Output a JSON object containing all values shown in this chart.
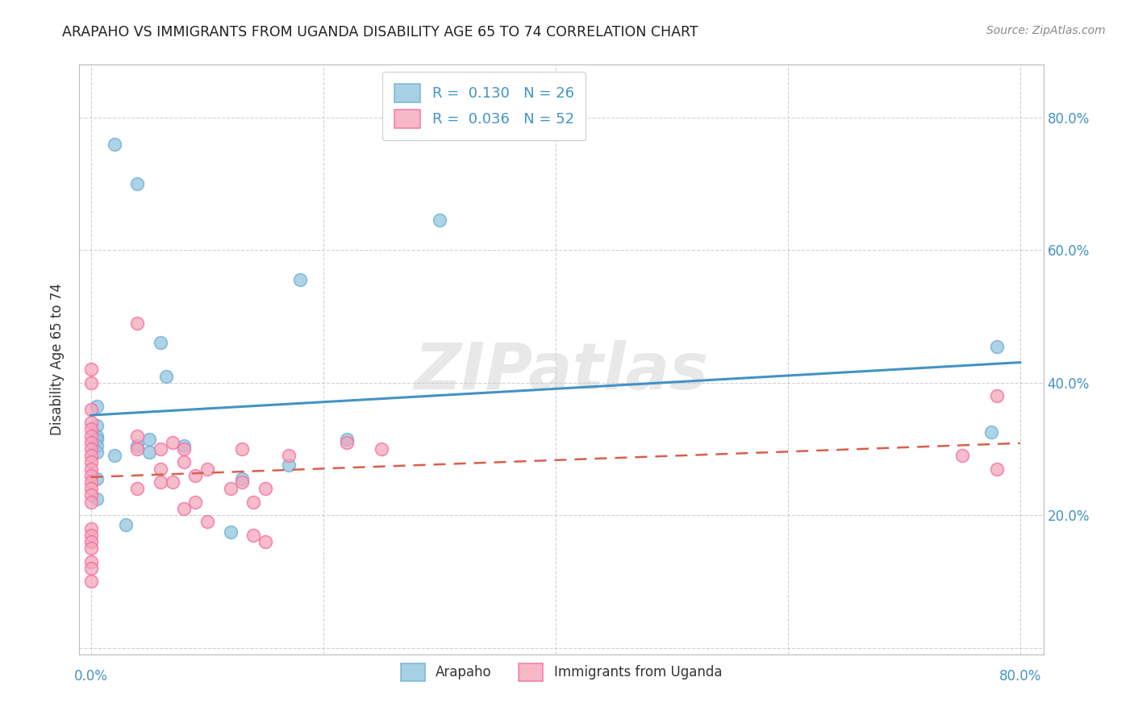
{
  "title": "ARAPAHO VS IMMIGRANTS FROM UGANDA DISABILITY AGE 65 TO 74 CORRELATION CHART",
  "source": "Source: ZipAtlas.com",
  "ylabel": "Disability Age 65 to 74",
  "xlim": [
    -0.01,
    0.82
  ],
  "ylim": [
    -0.01,
    0.88
  ],
  "x_ticks": [
    0.0,
    0.2,
    0.4,
    0.6,
    0.8
  ],
  "y_ticks": [
    0.0,
    0.2,
    0.4,
    0.6,
    0.8
  ],
  "x_tick_labels_left": [
    "0.0%"
  ],
  "x_tick_labels_right": [
    "80.0%"
  ],
  "y_tick_labels_right": [
    "20.0%",
    "40.0%",
    "60.0%",
    "80.0%"
  ],
  "arapaho_color": "#92c5de",
  "uganda_color": "#f4a7b9",
  "arapaho_edge_color": "#6baed6",
  "uganda_edge_color": "#f768a1",
  "arapaho_line_color": "#4393c3",
  "uganda_line_color": "#d6604d",
  "arapaho_R": 0.13,
  "arapaho_N": 26,
  "uganda_R": 0.036,
  "uganda_N": 52,
  "legend_labels": [
    "Arapaho",
    "Immigrants from Uganda"
  ],
  "watermark": "ZIPatlas",
  "tick_color": "#4393c3",
  "arapaho_x": [
    0.02,
    0.04,
    0.005,
    0.005,
    0.005,
    0.005,
    0.005,
    0.005,
    0.005,
    0.06,
    0.065,
    0.005,
    0.3,
    0.18,
    0.05,
    0.04,
    0.03,
    0.78,
    0.775,
    0.22,
    0.12,
    0.05,
    0.08,
    0.02,
    0.13,
    0.17
  ],
  "arapaho_y": [
    0.76,
    0.7,
    0.365,
    0.335,
    0.32,
    0.315,
    0.305,
    0.295,
    0.225,
    0.46,
    0.41,
    0.255,
    0.645,
    0.555,
    0.315,
    0.305,
    0.185,
    0.455,
    0.325,
    0.315,
    0.175,
    0.295,
    0.305,
    0.29,
    0.255,
    0.275
  ],
  "uganda_x": [
    0.0,
    0.0,
    0.0,
    0.0,
    0.0,
    0.0,
    0.0,
    0.0,
    0.0,
    0.0,
    0.0,
    0.0,
    0.0,
    0.0,
    0.0,
    0.0,
    0.0,
    0.0,
    0.0,
    0.0,
    0.0,
    0.0,
    0.0,
    0.04,
    0.04,
    0.04,
    0.04,
    0.06,
    0.06,
    0.06,
    0.07,
    0.07,
    0.08,
    0.08,
    0.08,
    0.09,
    0.09,
    0.1,
    0.1,
    0.12,
    0.13,
    0.13,
    0.14,
    0.14,
    0.15,
    0.15,
    0.17,
    0.22,
    0.25,
    0.75,
    0.78,
    0.78
  ],
  "uganda_y": [
    0.42,
    0.4,
    0.36,
    0.34,
    0.33,
    0.32,
    0.31,
    0.3,
    0.29,
    0.28,
    0.27,
    0.26,
    0.25,
    0.24,
    0.23,
    0.22,
    0.18,
    0.17,
    0.16,
    0.15,
    0.13,
    0.12,
    0.1,
    0.49,
    0.32,
    0.3,
    0.24,
    0.3,
    0.27,
    0.25,
    0.31,
    0.25,
    0.3,
    0.28,
    0.21,
    0.26,
    0.22,
    0.27,
    0.19,
    0.24,
    0.3,
    0.25,
    0.22,
    0.17,
    0.24,
    0.16,
    0.29,
    0.31,
    0.3,
    0.29,
    0.38,
    0.27
  ]
}
